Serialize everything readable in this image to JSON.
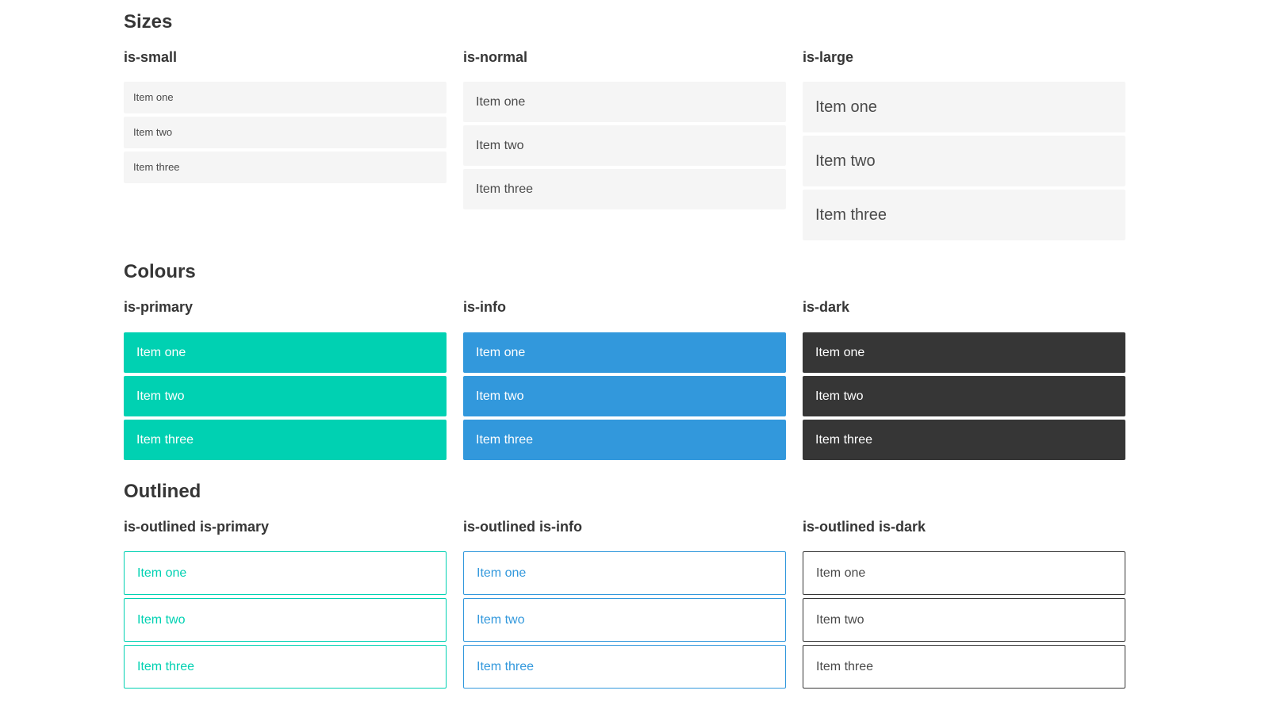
{
  "colors": {
    "primary": "#00d1b2",
    "info": "#3298dc",
    "dark": "#363636",
    "item_light_background": "#f5f5f5",
    "item_text": "#4a4a4a",
    "heading_text": "#363636",
    "item_text_on_color": "#ffffff"
  },
  "sections": [
    {
      "title": "Sizes",
      "groups": [
        {
          "label": "is-small",
          "items": [
            "Item one",
            "Item two",
            "Item three"
          ]
        },
        {
          "label": "is-normal",
          "items": [
            "Item one",
            "Item two",
            "Item three"
          ]
        },
        {
          "label": "is-large",
          "items": [
            "Item one",
            "Item two",
            "Item three"
          ]
        }
      ]
    },
    {
      "title": "Colours",
      "groups": [
        {
          "label": "is-primary",
          "items": [
            "Item one",
            "Item two",
            "Item three"
          ]
        },
        {
          "label": "is-info",
          "items": [
            "Item one",
            "Item two",
            "Item three"
          ]
        },
        {
          "label": "is-dark",
          "items": [
            "Item one",
            "Item two",
            "Item three"
          ]
        }
      ]
    },
    {
      "title": "Outlined",
      "groups": [
        {
          "label": "is-outlined is-primary",
          "items": [
            "Item one",
            "Item two",
            "Item three"
          ]
        },
        {
          "label": "is-outlined is-info",
          "items": [
            "Item one",
            "Item two",
            "Item three"
          ]
        },
        {
          "label": "is-outlined is-dark",
          "items": [
            "Item one",
            "Item two",
            "Item three"
          ]
        }
      ]
    }
  ]
}
